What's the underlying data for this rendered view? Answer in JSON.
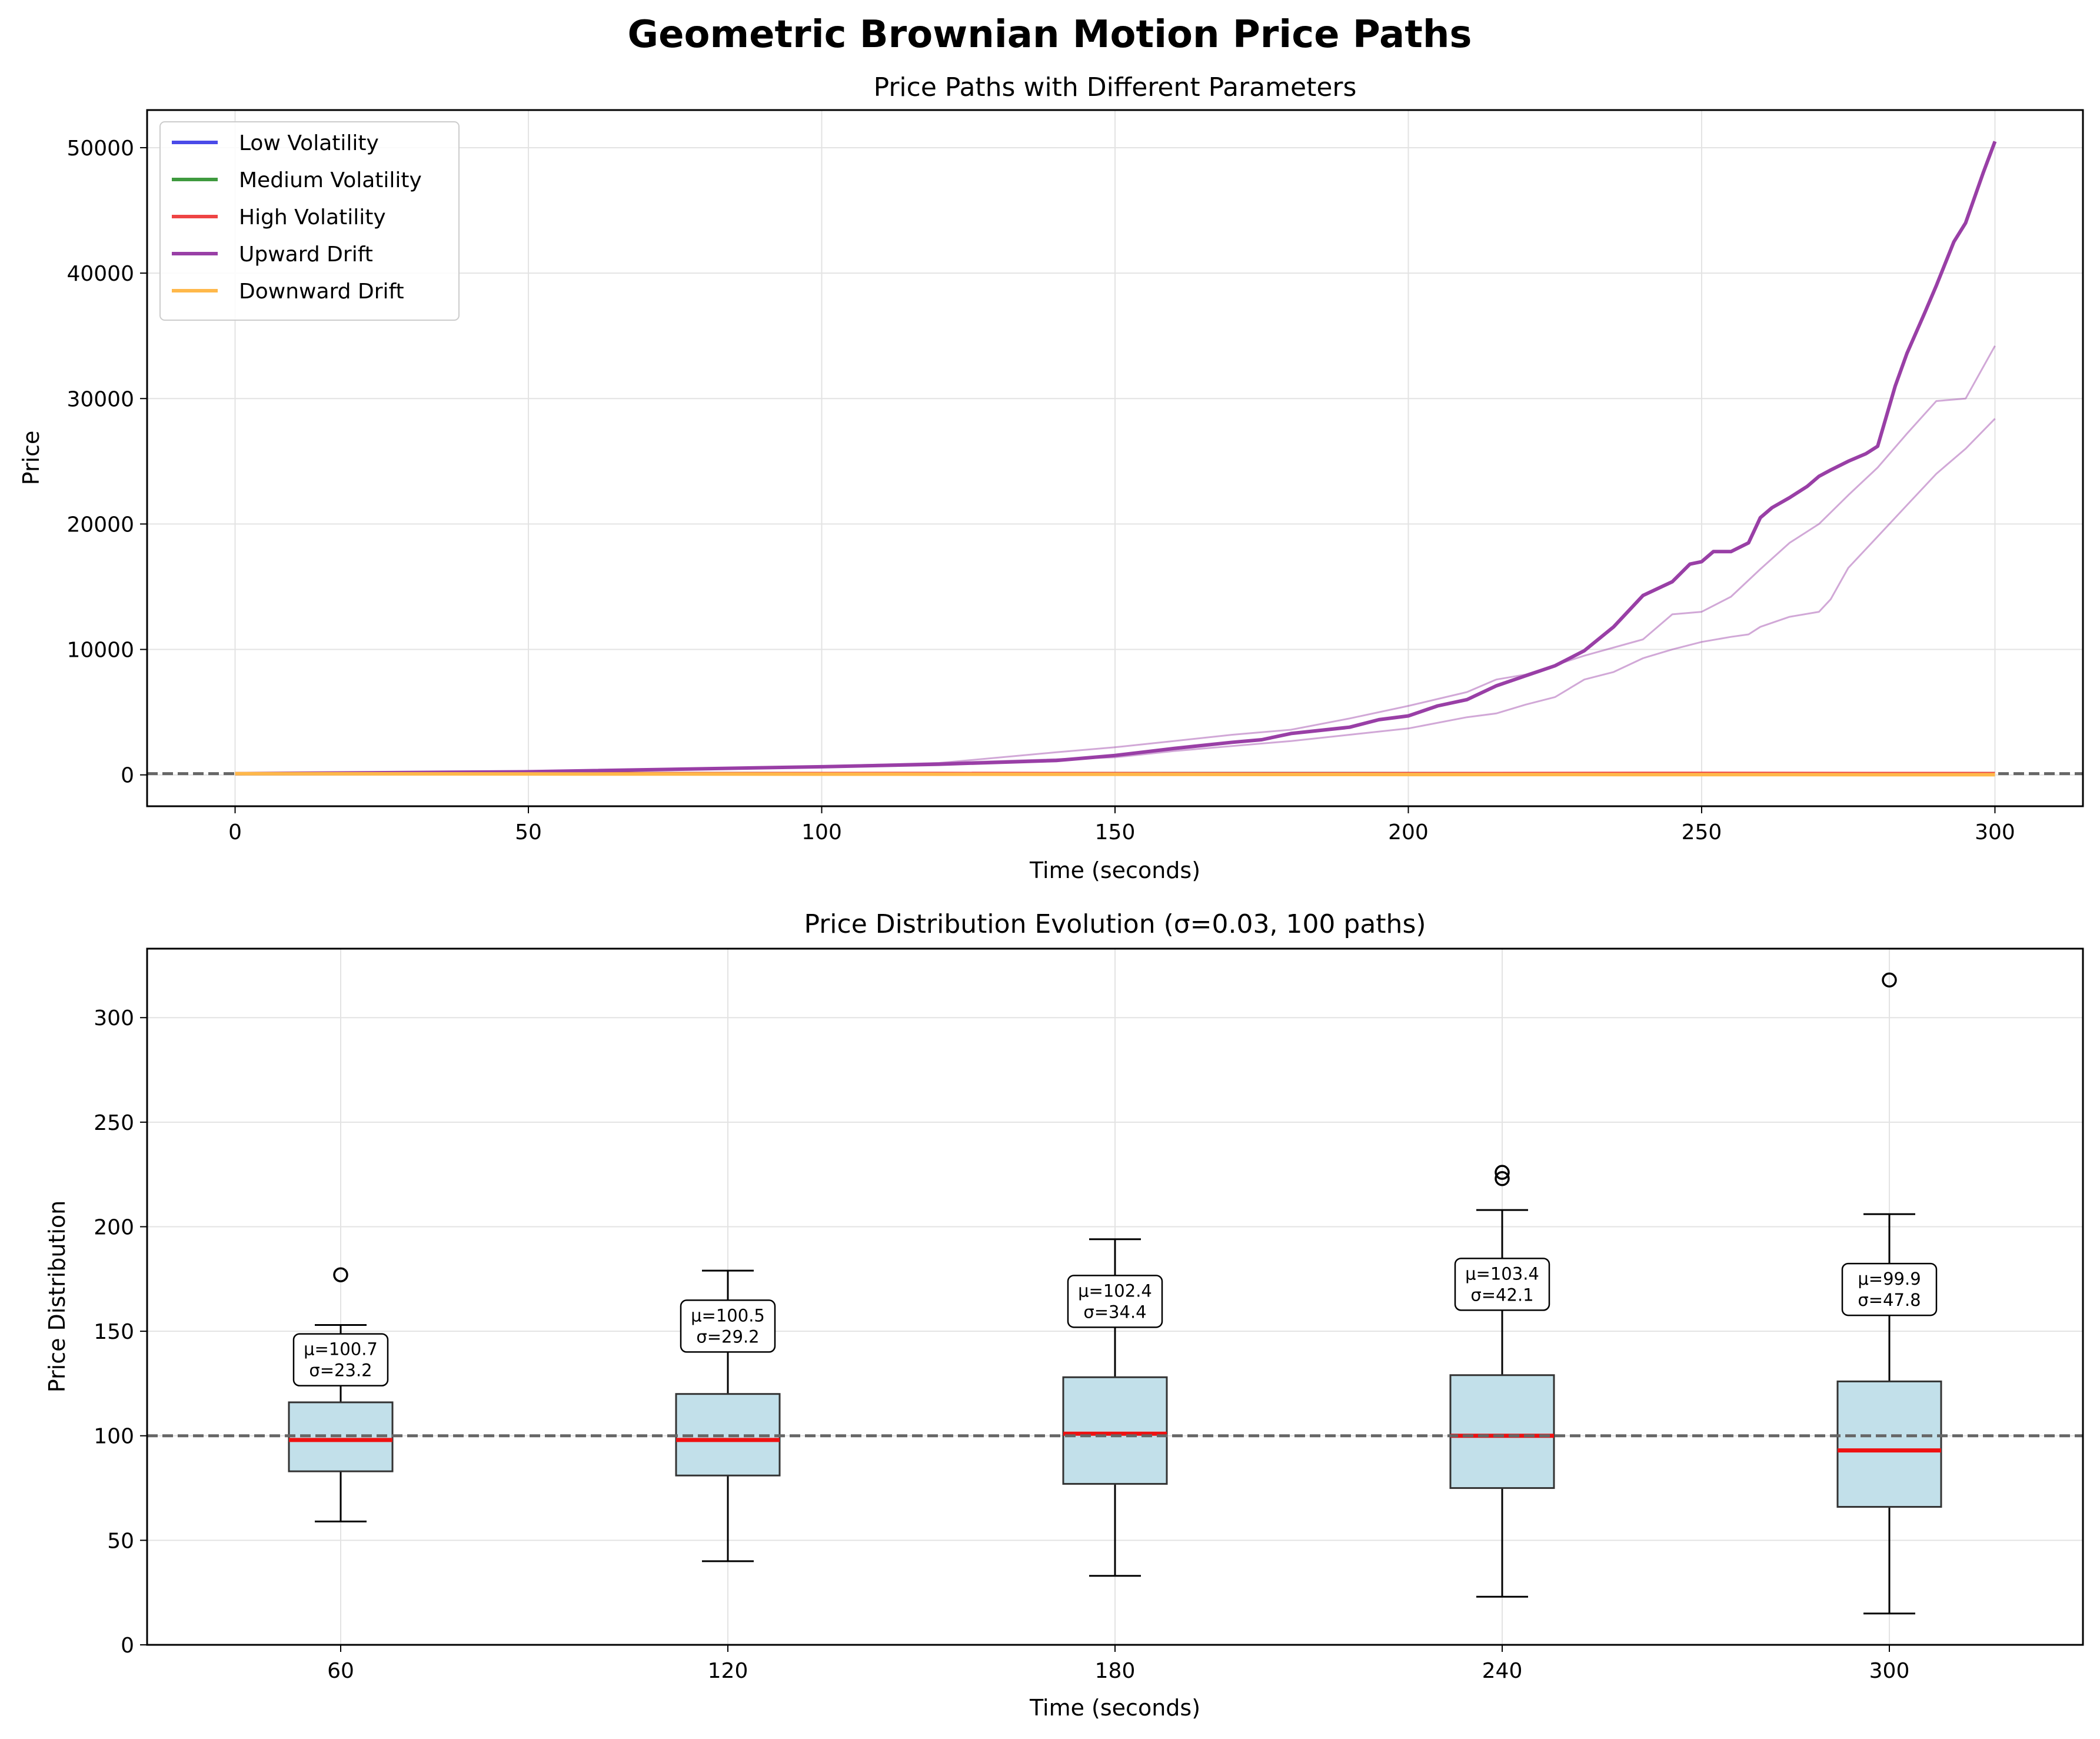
{
  "figure": {
    "title": "Geometric Brownian Motion Price Paths"
  },
  "chart_data": [
    {
      "type": "line",
      "title": "Price Paths with Different Parameters",
      "xlabel": "Time (seconds)",
      "ylabel": "Price",
      "xlim": [
        -15,
        315
      ],
      "ylim": [
        -2500,
        53000
      ],
      "xticks": [
        0,
        50,
        100,
        150,
        200,
        250,
        300
      ],
      "xtick_labels": [
        "0",
        "50",
        "100",
        "150",
        "200",
        "250",
        "300"
      ],
      "yticks": [
        0,
        10000,
        20000,
        30000,
        40000,
        50000
      ],
      "ytick_labels": [
        "0",
        "10000",
        "20000",
        "30000",
        "40000",
        "50000"
      ],
      "grid": true,
      "legend_position": "upper-left",
      "reference_line": {
        "y": 100,
        "style": "dashed",
        "color": "#666666"
      },
      "series": [
        {
          "name": "Low Volatility",
          "color": "#4a4ae8",
          "paths": [
            {
              "x": [
                0,
                60,
                120,
                180,
                240,
                300
              ],
              "y": [
                100,
                102,
                101,
                104,
                103,
                105
              ]
            }
          ]
        },
        {
          "name": "Medium Volatility",
          "color": "#3f9a3f",
          "paths": [
            {
              "x": [
                0,
                60,
                120,
                180,
                240,
                300
              ],
              "y": [
                100,
                98,
                103,
                99,
                106,
                102
              ]
            }
          ]
        },
        {
          "name": "High Volatility",
          "color": "#ee4444",
          "paths": [
            {
              "x": [
                0,
                60,
                120,
                180,
                240,
                300
              ],
              "y": [
                100,
                95,
                110,
                90,
                120,
                98
              ]
            }
          ]
        },
        {
          "name": "Upward Drift",
          "color": "#993fa6",
          "paths": [
            {
              "x": [
                0,
                50,
                100,
                120,
                140,
                150,
                160,
                170,
                175,
                180,
                190,
                195,
                200,
                205,
                210,
                215,
                220,
                225,
                230,
                235,
                240,
                245,
                248,
                250,
                252,
                255,
                258,
                260,
                262,
                265,
                268,
                270,
                272,
                275,
                278,
                280,
                283,
                285,
                288,
                290,
                293,
                295,
                298,
                300
              ],
              "y": [
                100,
                250,
                650,
                850,
                1150,
                1550,
                2100,
                2600,
                2800,
                3300,
                3800,
                4400,
                4700,
                5500,
                6000,
                7100,
                7900,
                8700,
                9900,
                11800,
                14300,
                15400,
                16800,
                17000,
                17800,
                17800,
                18500,
                20500,
                21300,
                22100,
                23000,
                23800,
                24300,
                25000,
                25600,
                26200,
                31000,
                33600,
                36800,
                39000,
                42500,
                44000,
                48000,
                50500
              ]
            },
            {
              "x": [
                0,
                50,
                100,
                120,
                140,
                150,
                160,
                170,
                180,
                190,
                200,
                210,
                215,
                220,
                230,
                240,
                245,
                250,
                255,
                260,
                265,
                270,
                275,
                280,
                285,
                290,
                295,
                300
              ],
              "y": [
                100,
                250,
                700,
                950,
                1800,
                2200,
                2700,
                3200,
                3600,
                4500,
                5500,
                6600,
                7600,
                8000,
                9500,
                10800,
                12800,
                13000,
                14200,
                16400,
                18500,
                20000,
                22300,
                24500,
                27200,
                29800,
                30000,
                34200
              ]
            },
            {
              "x": [
                0,
                50,
                100,
                150,
                160,
                180,
                190,
                200,
                210,
                215,
                220,
                225,
                230,
                235,
                240,
                245,
                250,
                255,
                258,
                260,
                265,
                270,
                272,
                275,
                280,
                285,
                290,
                295,
                300
              ],
              "y": [
                100,
                250,
                650,
                1400,
                1900,
                2700,
                3200,
                3700,
                4600,
                4900,
                5600,
                6200,
                7600,
                8200,
                9300,
                10000,
                10600,
                11000,
                11200,
                11800,
                12600,
                13000,
                14000,
                16500,
                19000,
                21500,
                24000,
                26000,
                28400
              ]
            }
          ]
        },
        {
          "name": "Downward Drift",
          "color": "#ffb84a",
          "paths": [
            {
              "x": [
                0,
                60,
                120,
                180,
                240,
                300
              ],
              "y": [
                100,
                70,
                50,
                35,
                22,
                15
              ]
            }
          ]
        }
      ]
    },
    {
      "type": "box",
      "title": "Price Distribution Evolution (σ=0.03, 100 paths)",
      "xlabel": "Time (seconds)",
      "ylabel": "Price Distribution",
      "ylim": [
        0,
        333
      ],
      "yticks": [
        0,
        50,
        100,
        150,
        200,
        250,
        300
      ],
      "ytick_labels": [
        "0",
        "50",
        "100",
        "150",
        "200",
        "250",
        "300"
      ],
      "grid": true,
      "reference_line": {
        "y": 100,
        "style": "dashed",
        "color": "#666666"
      },
      "box_color": "#c2e0ea",
      "median_color": "#ee1111",
      "categories": [
        "60",
        "120",
        "180",
        "240",
        "300"
      ],
      "boxes": [
        {
          "label": "60",
          "whisker_low": 59,
          "q1": 83,
          "median": 98,
          "q3": 116,
          "whisker_high": 153,
          "outliers": [
            177
          ],
          "mean": 100.7,
          "std": 23.2,
          "annotation": "μ=100.7\nσ=23.2"
        },
        {
          "label": "120",
          "whisker_low": 40,
          "q1": 81,
          "median": 98,
          "q3": 120,
          "whisker_high": 179,
          "outliers": [],
          "mean": 100.5,
          "std": 29.2,
          "annotation": "μ=100.5\nσ=29.2"
        },
        {
          "label": "180",
          "whisker_low": 33,
          "q1": 77,
          "median": 101,
          "q3": 128,
          "whisker_high": 194,
          "outliers": [],
          "mean": 102.4,
          "std": 34.4,
          "annotation": "μ=102.4\nσ=34.4"
        },
        {
          "label": "240",
          "whisker_low": 23,
          "q1": 75,
          "median": 100,
          "q3": 129,
          "whisker_high": 208,
          "outliers": [
            223,
            226
          ],
          "mean": 103.4,
          "std": 42.1,
          "annotation": "μ=103.4\nσ=42.1"
        },
        {
          "label": "300",
          "whisker_low": 15,
          "q1": 66,
          "median": 93,
          "q3": 126,
          "whisker_high": 206,
          "outliers": [
            318
          ],
          "mean": 99.9,
          "std": 47.8,
          "annotation": "μ=99.9\nσ=47.8"
        }
      ]
    }
  ]
}
